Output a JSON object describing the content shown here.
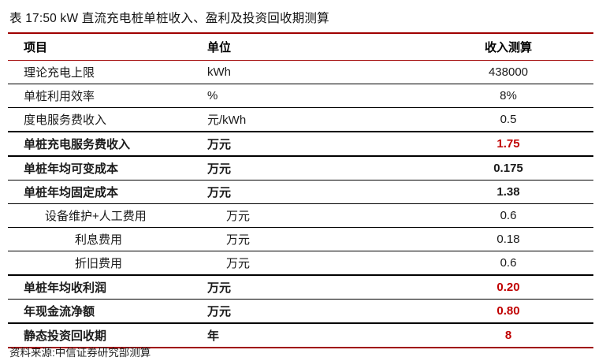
{
  "page": {
    "title": "表 17:50 kW 直流充电桩单桩收入、盈利及投资回收期测算",
    "source": "资料来源:中信证券研究部测算"
  },
  "colors": {
    "rule_red": "#a00000",
    "value_red": "#c00000",
    "separator_black": "#000000"
  },
  "table": {
    "headers": {
      "item": "项目",
      "unit": "单位",
      "value": "收入测算"
    },
    "rows": [
      {
        "item": "理论充电上限",
        "unit": "kWh",
        "value": "438000"
      },
      {
        "item": "单桩利用效率",
        "unit": "%",
        "value": "8%"
      },
      {
        "item": "度电服务费收入",
        "unit": "元/kWh",
        "value": "0.5"
      },
      {
        "item": "单桩充电服务费收入",
        "unit": "万元",
        "value": "1.75"
      },
      {
        "item": "单桩年均可变成本",
        "unit": "万元",
        "value": "0.175"
      },
      {
        "item": "单桩年均固定成本",
        "unit": "万元",
        "value": "1.38"
      },
      {
        "item": "设备维护+人工费用",
        "unit": "万元",
        "value": "0.6"
      },
      {
        "item": "利息费用",
        "unit": "万元",
        "value": "0.18"
      },
      {
        "item": "折旧费用",
        "unit": "万元",
        "value": "0.6"
      },
      {
        "item": "单桩年均收利润",
        "unit": "万元",
        "value": "0.20"
      },
      {
        "item": "年现金流净额",
        "unit": "万元",
        "value": "0.80"
      },
      {
        "item": "静态投资回收期",
        "unit": "年",
        "value": "8"
      }
    ]
  }
}
